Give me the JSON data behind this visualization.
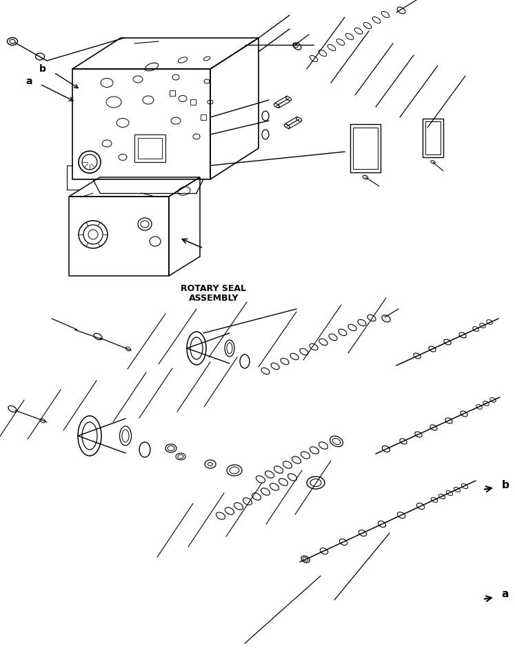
{
  "bg_color": "#ffffff",
  "lc": "#000000",
  "tc": "#000000",
  "rotary_seal_text1": "ROTARY SEAL",
  "rotary_seal_text2": "ASSEMBLY",
  "label_a": "a",
  "label_b": "b",
  "fig_width": 7.47,
  "fig_height": 9.44,
  "dpi": 100
}
